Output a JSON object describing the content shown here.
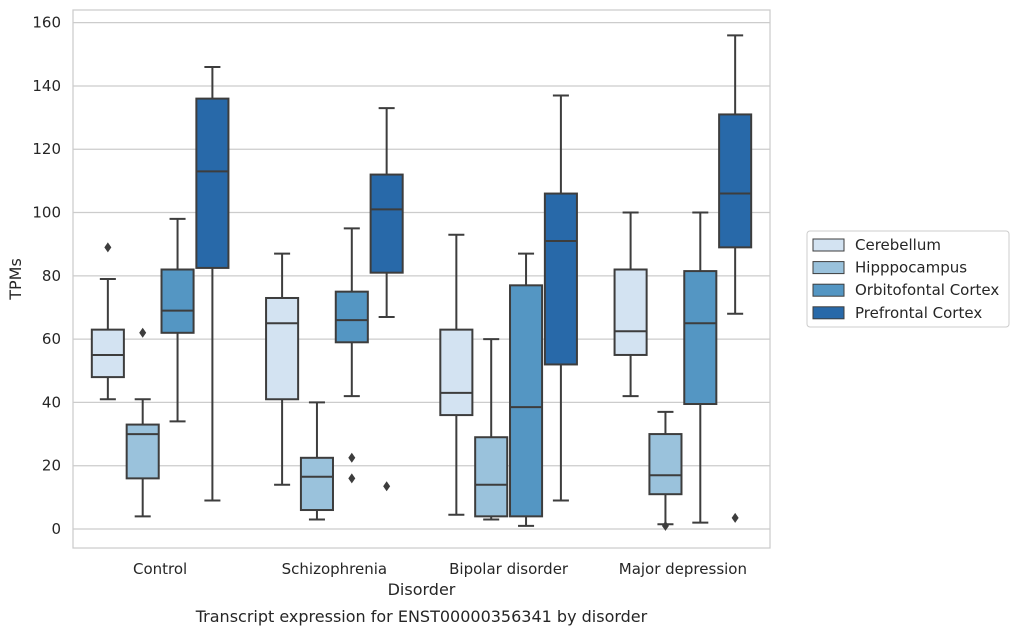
{
  "chart_data": {
    "type": "box",
    "xlabel": "Disorder",
    "ylabel": "TPMs",
    "caption": "Transcript expression for ENST00000356341 by disorder",
    "ylim": [
      -6,
      164
    ],
    "yticks": [
      0,
      20,
      40,
      60,
      80,
      100,
      120,
      140,
      160
    ],
    "grid": true,
    "legend_position": "right",
    "categories": [
      "Control",
      "Schizophrenia",
      "Bipolar disorder",
      "Major depression"
    ],
    "series": [
      {
        "name": "Cerebellum",
        "color": "#d3e3f2",
        "boxes": [
          {
            "whisker_low": 41,
            "q1": 48,
            "median": 55,
            "q3": 63,
            "whisker_high": 79,
            "outliers": [
              89
            ]
          },
          {
            "whisker_low": 14,
            "q1": 41,
            "median": 65,
            "q3": 73,
            "whisker_high": 87,
            "outliers": []
          },
          {
            "whisker_low": 4.5,
            "q1": 36,
            "median": 43,
            "q3": 63,
            "whisker_high": 93,
            "outliers": []
          },
          {
            "whisker_low": 42,
            "q1": 55,
            "median": 62.5,
            "q3": 82,
            "whisker_high": 100,
            "outliers": []
          }
        ]
      },
      {
        "name": "Hipppocampus",
        "color": "#9ac2dc",
        "boxes": [
          {
            "whisker_low": 4,
            "q1": 16,
            "median": 30,
            "q3": 33,
            "whisker_high": 41,
            "outliers": [
              62
            ]
          },
          {
            "whisker_low": 3,
            "q1": 6,
            "median": 16.5,
            "q3": 22.5,
            "whisker_high": 40,
            "outliers": []
          },
          {
            "whisker_low": 3,
            "q1": 4,
            "median": 14,
            "q3": 29,
            "whisker_high": 60,
            "outliers": []
          },
          {
            "whisker_low": 1.5,
            "q1": 11,
            "median": 17,
            "q3": 30,
            "whisker_high": 37,
            "outliers": [
              1
            ]
          }
        ]
      },
      {
        "name": "Orbitofontal Cortex",
        "color": "#5496c3",
        "boxes": [
          {
            "whisker_low": 34,
            "q1": 62,
            "median": 69,
            "q3": 82,
            "whisker_high": 98,
            "outliers": []
          },
          {
            "whisker_low": 42,
            "q1": 59,
            "median": 66,
            "q3": 75,
            "whisker_high": 95,
            "outliers": [
              22.5,
              16
            ]
          },
          {
            "whisker_low": 1,
            "q1": 4,
            "median": 38.5,
            "q3": 77,
            "whisker_high": 87,
            "outliers": []
          },
          {
            "whisker_low": 2,
            "q1": 39.5,
            "median": 65,
            "q3": 81.5,
            "whisker_high": 100,
            "outliers": []
          }
        ]
      },
      {
        "name": "Prefrontal Cortex",
        "color": "#2869a9",
        "boxes": [
          {
            "whisker_low": 9,
            "q1": 82.5,
            "median": 113,
            "q3": 136,
            "whisker_high": 146,
            "outliers": []
          },
          {
            "whisker_low": 67,
            "q1": 81,
            "median": 101,
            "q3": 112,
            "whisker_high": 133,
            "outliers": [
              13.5
            ]
          },
          {
            "whisker_low": 9,
            "q1": 52,
            "median": 91,
            "q3": 106,
            "whisker_high": 137,
            "outliers": []
          },
          {
            "whisker_low": 68,
            "q1": 89,
            "median": 106,
            "q3": 131,
            "whisker_high": 156,
            "outliers": [
              3.5
            ]
          }
        ]
      }
    ]
  }
}
